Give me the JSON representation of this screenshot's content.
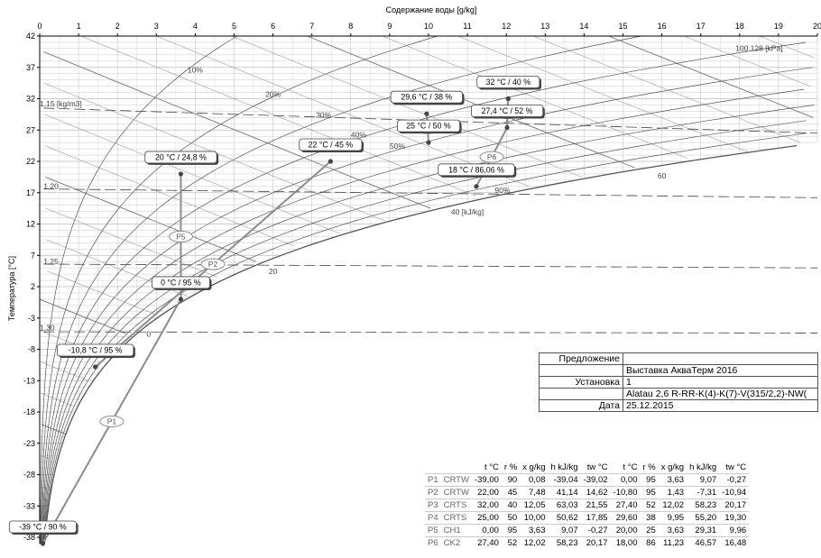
{
  "chart_data": {
    "type": "scatter",
    "title": "",
    "xlabel": "Содержание воды [g/kg]",
    "ylabel": "Температура [°C]",
    "xlim": [
      0,
      20
    ],
    "ylim": [
      -39,
      42
    ],
    "x_ticks": [
      "0",
      "1",
      "2",
      "3",
      "4",
      "5",
      "6",
      "7",
      "8",
      "9",
      "10",
      "11",
      "12",
      "13",
      "14",
      "15",
      "16",
      "17",
      "18",
      "19",
      "20"
    ],
    "y_ticks": [
      "42",
      "37",
      "32",
      "27",
      "22",
      "17",
      "12",
      "7",
      "2",
      "-3",
      "-8",
      "-13",
      "-18",
      "-23",
      "-28",
      "-33",
      "-38"
    ],
    "rh_curves": [
      10,
      20,
      30,
      40,
      50,
      90
    ],
    "enthalpy_lines": [
      0,
      20,
      40,
      60
    ],
    "curve_labels": {
      "rh10": "10%",
      "rh20": "20%",
      "rh30": "30%",
      "rh40": "40%",
      "rh50": "50%",
      "rh90": "90%",
      "h0": "0",
      "h20": "20",
      "h40": "40 [kJ/kg]",
      "h60": "60",
      "d115": "1,15 [kg/m3]",
      "d120": "1,20",
      "d125": "1,25",
      "d130": "1,30",
      "pressure": "100 128 [kPa]"
    },
    "points": [
      {
        "label": "-39 °C / 90 %",
        "t": -39,
        "x": 0.08
      },
      {
        "label": "-10,8 °C / 95 %",
        "t": -10.8,
        "x": 1.43
      },
      {
        "label": "0 °C / 95 %",
        "t": 0,
        "x": 3.63
      },
      {
        "label": "20 °C / 24,8 %",
        "t": 20,
        "x": 3.63
      },
      {
        "label": "22 °C / 45 %",
        "t": 22,
        "x": 7.48
      },
      {
        "label": "18 °C / 86,06 %",
        "t": 18,
        "x": 11.23
      },
      {
        "label": "29,6 °C / 38 %",
        "t": 29.6,
        "x": 9.95
      },
      {
        "label": "25 °C / 50 %",
        "t": 25,
        "x": 10.0
      },
      {
        "label": "32 °C / 40 %",
        "t": 32,
        "x": 12.05
      },
      {
        "label": "27,4 °C / 52 %",
        "t": 27.4,
        "x": 12.02
      }
    ],
    "processes": [
      {
        "name": "P1",
        "from": [
          0.08,
          -39
        ],
        "to": [
          3.63,
          0
        ]
      },
      {
        "name": "P2",
        "from": [
          7.48,
          22
        ],
        "to": [
          1.43,
          -10.8
        ]
      },
      {
        "name": "P3",
        "from": [
          12.05,
          32
        ],
        "to": [
          12.02,
          27.4
        ]
      },
      {
        "name": "P4",
        "from": [
          10.0,
          25
        ],
        "to": [
          9.95,
          29.6
        ]
      },
      {
        "name": "P5",
        "from": [
          3.63,
          0
        ],
        "to": [
          3.63,
          20
        ]
      },
      {
        "name": "P6",
        "from": [
          12.02,
          27.4
        ],
        "to": [
          11.23,
          18
        ]
      }
    ]
  },
  "info": {
    "rows": [
      {
        "key": "Предложение",
        "value": ""
      },
      {
        "key": "",
        "value": "Выставка АкваТерм 2016"
      },
      {
        "key": "Установка",
        "value": "1"
      },
      {
        "key": "",
        "value": "Alatau 2,6 R-RR-K(4)-K(7)-V(315/2,2)-NW("
      },
      {
        "key": "Дата",
        "value": "25.12.2015"
      }
    ]
  },
  "table": {
    "headers": [
      "",
      "",
      "t °C",
      "r %",
      "x g/kg",
      "h kJ/kg",
      "tw °C",
      "t °C",
      "r %",
      "x g/kg",
      "h kJ/kg",
      "tw °C"
    ],
    "rows": [
      [
        "P1",
        "CRTW",
        "-39,00",
        "90",
        "0,08",
        "-39,04",
        "-39,02",
        "0,00",
        "95",
        "3,63",
        "9,07",
        "-0,27"
      ],
      [
        "P2",
        "CRTW",
        "22,00",
        "45",
        "7,48",
        "41,14",
        "14,62",
        "-10,80",
        "95",
        "1,43",
        "-7,31",
        "-10,94"
      ],
      [
        "P3",
        "CRTS",
        "32,00",
        "40",
        "12,05",
        "63,03",
        "21,55",
        "27,40",
        "52",
        "12,02",
        "58,23",
        "20,17"
      ],
      [
        "P4",
        "CRTS",
        "25,00",
        "50",
        "10,00",
        "50,62",
        "17,85",
        "29,60",
        "38",
        "9,95",
        "55,20",
        "19,30"
      ],
      [
        "P5",
        "CH1",
        "0,00",
        "95",
        "3,63",
        "9,07",
        "-0,27",
        "20,00",
        "25",
        "3,63",
        "29,31",
        "9,96"
      ],
      [
        "P6",
        "CK2",
        "27,40",
        "52",
        "12,02",
        "58,23",
        "20,17",
        "18,00",
        "86",
        "11,23",
        "46,57",
        "16,48"
      ]
    ]
  },
  "colors": {
    "process": "#8c8c8c",
    "grid": "#bdbdbd",
    "curve": "#555555"
  }
}
